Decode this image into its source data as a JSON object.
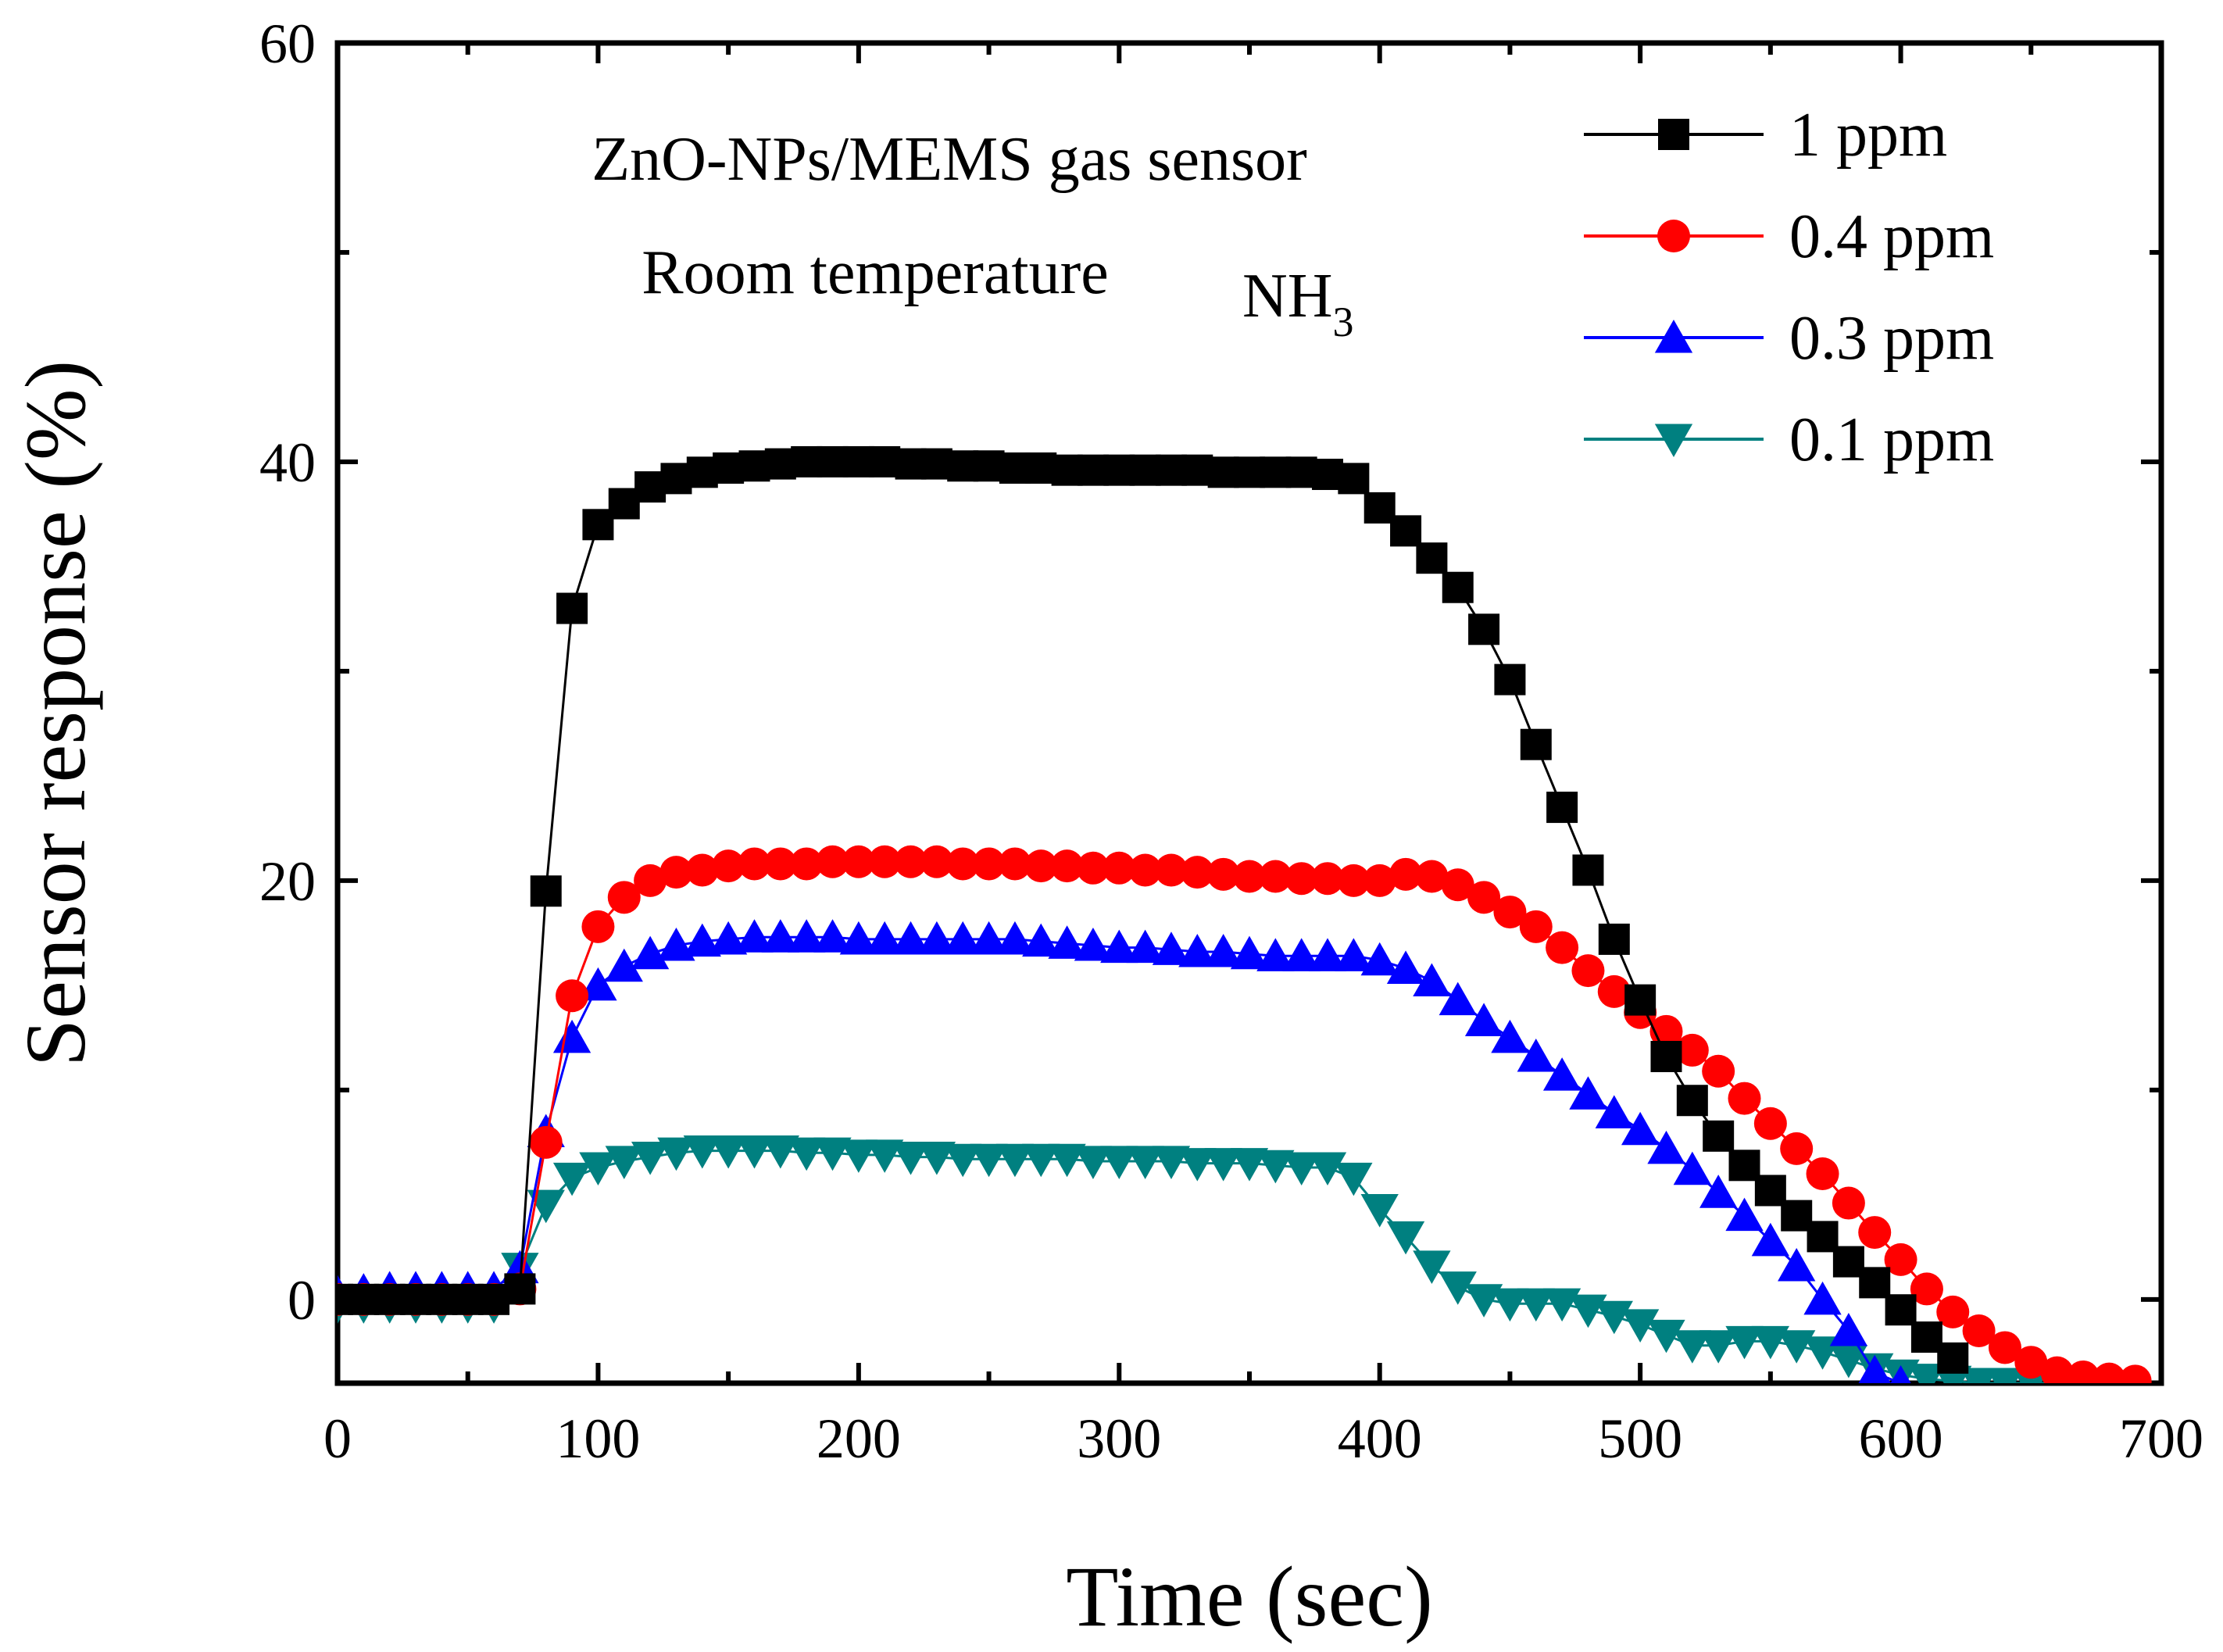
{
  "chart_data": {
    "type": "line",
    "title": "",
    "xlabel": "Time (sec)",
    "ylabel": "Sensor response (%)",
    "xlim": [
      0,
      700
    ],
    "ylim": [
      -4,
      60
    ],
    "xticks": [
      "0",
      "100",
      "200",
      "300",
      "400",
      "500",
      "600",
      "700"
    ],
    "yticks": [
      "0",
      "20",
      "40",
      "60"
    ],
    "grid": false,
    "legend_position": "top-right",
    "annotations": {
      "line1": "ZnO-NPs/MEMS gas sensor",
      "line2": "Room temperature",
      "gas": "NH",
      "gas_subscript": "3"
    },
    "series": [
      {
        "name": "1 ppm",
        "color": "#000000",
        "marker": "square",
        "x": [
          0,
          10,
          20,
          30,
          40,
          50,
          60,
          70,
          80,
          90,
          100,
          110,
          120,
          130,
          140,
          150,
          160,
          170,
          180,
          190,
          200,
          210,
          220,
          230,
          240,
          250,
          260,
          270,
          280,
          290,
          300,
          310,
          320,
          330,
          340,
          350,
          360,
          370,
          380,
          390,
          400,
          410,
          420,
          430,
          440,
          450,
          460,
          470,
          480,
          490,
          500,
          510,
          520,
          530,
          540,
          550,
          560,
          570,
          580,
          590,
          600,
          610,
          620
        ],
        "values": [
          0,
          0,
          0,
          0,
          0,
          0,
          0,
          0.5,
          19.5,
          33,
          37,
          38,
          38.8,
          39.2,
          39.5,
          39.7,
          39.8,
          39.9,
          40,
          40,
          40,
          40,
          39.9,
          39.9,
          39.8,
          39.8,
          39.7,
          39.7,
          39.6,
          39.6,
          39.6,
          39.6,
          39.6,
          39.6,
          39.5,
          39.5,
          39.5,
          39.5,
          39.4,
          39.2,
          37.8,
          36.7,
          35.4,
          34,
          32,
          29.6,
          26.5,
          23.5,
          20.5,
          17.2,
          14.3,
          11.6,
          9.5,
          7.8,
          6.4,
          5.2,
          4,
          3,
          1.8,
          0.8,
          -0.5,
          -1.8,
          -2.8
        ]
      },
      {
        "name": "0.4 ppm",
        "color": "#ff0000",
        "marker": "circle",
        "x": [
          0,
          10,
          20,
          30,
          40,
          50,
          60,
          70,
          80,
          90,
          100,
          110,
          120,
          130,
          140,
          150,
          160,
          170,
          180,
          190,
          200,
          210,
          220,
          230,
          240,
          250,
          260,
          270,
          280,
          290,
          300,
          310,
          320,
          330,
          340,
          350,
          360,
          370,
          380,
          390,
          400,
          410,
          420,
          430,
          440,
          450,
          460,
          470,
          480,
          490,
          500,
          510,
          520,
          530,
          540,
          550,
          560,
          570,
          580,
          590,
          600,
          610,
          620,
          630,
          640,
          650,
          660,
          670,
          680,
          690
        ],
        "values": [
          0,
          0,
          0,
          0,
          0,
          0,
          0,
          0.5,
          7.5,
          14.5,
          17.8,
          19.2,
          20,
          20.4,
          20.5,
          20.7,
          20.8,
          20.8,
          20.8,
          20.9,
          20.9,
          20.9,
          20.9,
          20.9,
          20.8,
          20.8,
          20.8,
          20.7,
          20.7,
          20.6,
          20.6,
          20.5,
          20.5,
          20.4,
          20.3,
          20.2,
          20.2,
          20.1,
          20.1,
          20,
          20,
          20.3,
          20.2,
          19.8,
          19.2,
          18.5,
          17.8,
          16.8,
          15.7,
          14.7,
          13.7,
          12.8,
          11.9,
          10.9,
          9.6,
          8.4,
          7.2,
          6,
          4.6,
          3.2,
          1.9,
          0.5,
          -0.6,
          -1.5,
          -2.3,
          -3,
          -3.5,
          -3.7,
          -3.8,
          -3.9
        ]
      },
      {
        "name": "0.3 ppm",
        "color": "#0000ff",
        "marker": "triangle-up",
        "x": [
          0,
          10,
          20,
          30,
          40,
          50,
          60,
          70,
          80,
          90,
          100,
          110,
          120,
          130,
          140,
          150,
          160,
          170,
          180,
          190,
          200,
          210,
          220,
          230,
          240,
          250,
          260,
          270,
          280,
          290,
          300,
          310,
          320,
          330,
          340,
          350,
          360,
          370,
          380,
          390,
          400,
          410,
          420,
          430,
          440,
          450,
          460,
          470,
          480,
          490,
          500,
          510,
          520,
          530,
          540,
          550,
          560,
          570,
          580,
          590,
          600
        ],
        "values": [
          0.3,
          0.4,
          0.5,
          0.5,
          0.5,
          0.5,
          0.5,
          1.5,
          8,
          12.5,
          15,
          15.9,
          16.5,
          16.9,
          17.1,
          17.2,
          17.3,
          17.3,
          17.3,
          17.3,
          17.2,
          17.2,
          17.2,
          17.2,
          17.2,
          17.2,
          17.2,
          17.1,
          17,
          16.9,
          16.8,
          16.8,
          16.7,
          16.6,
          16.6,
          16.5,
          16.4,
          16.4,
          16.4,
          16.4,
          16.2,
          15.8,
          15.2,
          14.3,
          13.3,
          12.5,
          11.6,
          10.7,
          9.8,
          8.9,
          8.1,
          7.2,
          6.2,
          5.1,
          4,
          2.8,
          1.6,
          0,
          -1.5,
          -3.5,
          -4
        ]
      },
      {
        "name": "0.1 ppm",
        "color": "#008080",
        "marker": "triangle-down",
        "x": [
          0,
          10,
          20,
          30,
          40,
          50,
          60,
          70,
          80,
          90,
          100,
          110,
          120,
          130,
          140,
          150,
          160,
          170,
          180,
          190,
          200,
          210,
          220,
          230,
          240,
          250,
          260,
          270,
          280,
          290,
          300,
          310,
          320,
          330,
          340,
          350,
          360,
          370,
          380,
          390,
          400,
          410,
          420,
          430,
          440,
          450,
          460,
          470,
          480,
          490,
          500,
          510,
          520,
          530,
          540,
          550,
          560,
          570,
          580,
          590,
          600,
          610,
          620,
          630,
          640,
          650,
          660,
          670
        ],
        "values": [
          -0.3,
          -0.3,
          -0.3,
          -0.3,
          -0.3,
          -0.3,
          -0.3,
          1.5,
          4.5,
          5.8,
          6.3,
          6.6,
          6.8,
          7,
          7.1,
          7.1,
          7.1,
          7.1,
          7,
          7,
          6.9,
          6.9,
          6.8,
          6.8,
          6.7,
          6.7,
          6.7,
          6.7,
          6.7,
          6.6,
          6.6,
          6.6,
          6.6,
          6.5,
          6.5,
          6.5,
          6.4,
          6.3,
          6.3,
          5.8,
          4.3,
          3,
          1.6,
          0.6,
          0,
          -0.2,
          -0.2,
          -0.2,
          -0.5,
          -0.8,
          -1.2,
          -1.7,
          -2.2,
          -2.2,
          -2,
          -2,
          -2.2,
          -2.5,
          -2.9,
          -3.3,
          -3.6,
          -3.8,
          -3.9,
          -4,
          -4,
          -4,
          -4,
          -4
        ]
      }
    ]
  }
}
